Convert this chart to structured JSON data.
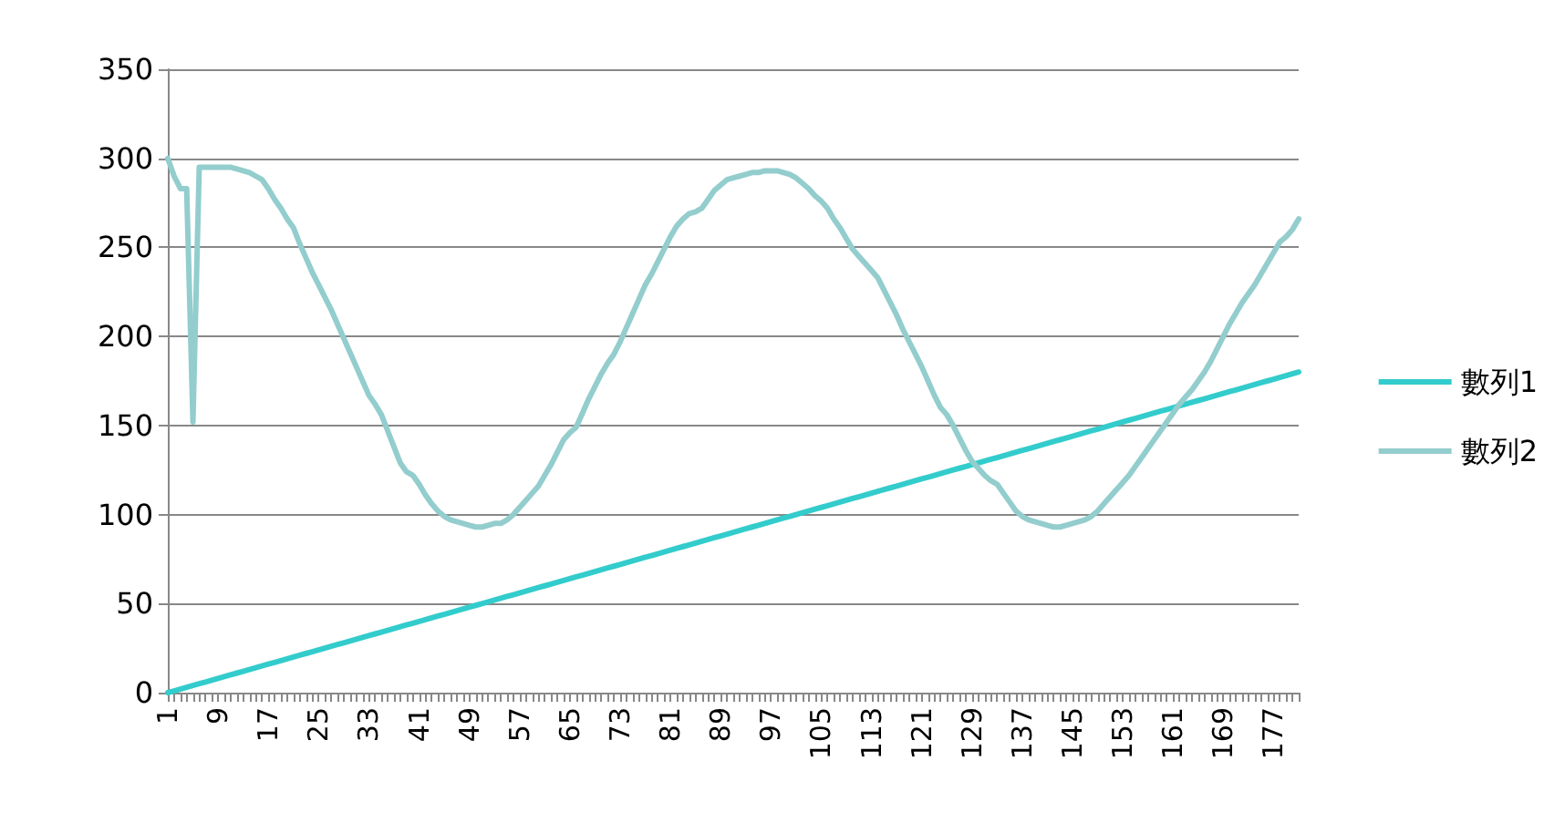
{
  "chart_data": {
    "type": "line",
    "categories": [
      "1",
      null,
      null,
      null,
      null,
      null,
      null,
      null,
      "9",
      null,
      null,
      null,
      null,
      null,
      null,
      null,
      "17",
      null,
      null,
      null,
      null,
      null,
      null,
      null,
      "25",
      null,
      null,
      null,
      null,
      null,
      null,
      null,
      "33",
      null,
      null,
      null,
      null,
      null,
      null,
      null,
      "41",
      null,
      null,
      null,
      null,
      null,
      null,
      null,
      "49",
      null,
      null,
      null,
      null,
      null,
      null,
      null,
      "57",
      null,
      null,
      null,
      null,
      null,
      null,
      null,
      "65",
      null,
      null,
      null,
      null,
      null,
      null,
      null,
      "73",
      null,
      null,
      null,
      null,
      null,
      null,
      null,
      "81",
      null,
      null,
      null,
      null,
      null,
      null,
      null,
      "89",
      null,
      null,
      null,
      null,
      null,
      null,
      null,
      "97",
      null,
      null,
      null,
      null,
      null,
      null,
      null,
      "105",
      null,
      null,
      null,
      null,
      null,
      null,
      null,
      "113",
      null,
      null,
      null,
      null,
      null,
      null,
      null,
      "121",
      null,
      null,
      null,
      null,
      null,
      null,
      null,
      "129",
      null,
      null,
      null,
      null,
      null,
      null,
      null,
      "137",
      null,
      null,
      null,
      null,
      null,
      null,
      null,
      "145",
      null,
      null,
      null,
      null,
      null,
      null,
      null,
      "153",
      null,
      null,
      null,
      null,
      null,
      null,
      null,
      "161",
      null,
      null,
      null,
      null,
      null,
      null,
      null,
      "169",
      null,
      null,
      null,
      null,
      null,
      null,
      null,
      "177",
      null,
      null,
      null,
      null
    ],
    "series": [
      {
        "name": "數列1",
        "color": "#33cccc",
        "values": [
          0,
          1,
          2,
          3,
          4,
          5,
          6,
          7,
          8,
          9,
          10,
          11,
          12,
          13,
          14,
          15,
          16,
          17,
          18,
          19,
          20,
          21,
          22,
          23,
          24,
          25,
          26,
          27,
          28,
          29,
          30,
          31,
          32,
          33,
          34,
          35,
          36,
          37,
          38,
          39,
          40,
          41,
          42,
          43,
          44,
          45,
          46,
          47,
          48,
          49,
          50,
          51,
          52,
          53,
          54,
          55,
          56,
          57,
          58,
          59,
          60,
          61,
          62,
          63,
          64,
          65,
          66,
          67,
          68,
          69,
          70,
          71,
          72,
          73,
          74,
          75,
          76,
          77,
          78,
          79,
          80,
          81,
          82,
          83,
          84,
          85,
          86,
          87,
          88,
          89,
          90,
          91,
          92,
          93,
          94,
          95,
          96,
          97,
          98,
          99,
          100,
          101,
          102,
          103,
          104,
          105,
          106,
          107,
          108,
          109,
          110,
          111,
          112,
          113,
          114,
          115,
          116,
          117,
          118,
          119,
          120,
          121,
          122,
          123,
          124,
          125,
          126,
          127,
          128,
          129,
          130,
          131,
          132,
          133,
          134,
          135,
          136,
          137,
          138,
          139,
          140,
          141,
          142,
          143,
          144,
          145,
          146,
          147,
          148,
          149,
          150,
          151,
          152,
          153,
          154,
          155,
          156,
          157,
          158,
          159,
          160,
          161,
          162,
          163,
          164,
          165,
          166,
          167,
          168,
          169,
          170,
          171,
          172,
          173,
          174,
          175,
          176,
          177,
          178,
          179,
          180
        ]
      },
      {
        "name": "數列2",
        "color": "#93cdcd",
        "values": [
          300,
          290,
          283,
          283,
          152,
          295,
          295,
          295,
          295,
          295,
          295,
          294,
          293,
          292,
          290,
          288,
          283,
          277,
          272,
          266,
          261,
          252,
          244,
          236,
          229,
          222,
          215,
          207,
          199,
          191,
          183,
          175,
          167,
          162,
          156,
          147,
          138,
          129,
          124,
          122,
          117,
          111,
          106,
          102,
          99,
          97,
          96,
          95,
          94,
          93,
          93,
          94,
          95,
          95,
          97,
          100,
          104,
          108,
          112,
          116,
          122,
          128,
          135,
          142,
          146,
          149,
          157,
          165,
          172,
          179,
          185,
          190,
          197,
          205,
          213,
          221,
          229,
          235,
          242,
          249,
          256,
          262,
          266,
          269,
          270,
          272,
          277,
          282,
          285,
          288,
          289,
          290,
          291,
          292,
          292,
          293,
          293,
          293,
          292,
          291,
          289,
          286,
          283,
          279,
          276,
          272,
          266,
          261,
          255,
          249,
          245,
          241,
          237,
          233,
          226,
          219,
          212,
          204,
          197,
          190,
          183,
          175,
          167,
          160,
          156,
          150,
          143,
          136,
          130,
          126,
          122,
          119,
          117,
          112,
          107,
          102,
          99,
          97,
          96,
          95,
          94,
          93,
          93,
          94,
          95,
          96,
          97,
          99,
          102,
          106,
          110,
          114,
          118,
          122,
          127,
          132,
          137,
          142,
          147,
          152,
          157,
          162,
          166,
          170,
          175,
          180,
          186,
          193,
          200,
          207,
          213,
          219,
          224,
          229,
          235,
          241,
          247,
          253,
          256,
          260,
          266
        ]
      }
    ],
    "ylim": [
      0,
      350
    ],
    "yticks": [
      0,
      50,
      100,
      150,
      200,
      250,
      300,
      350
    ],
    "grid": "y",
    "legend": "right",
    "marker": "none",
    "line_style": "solid"
  }
}
